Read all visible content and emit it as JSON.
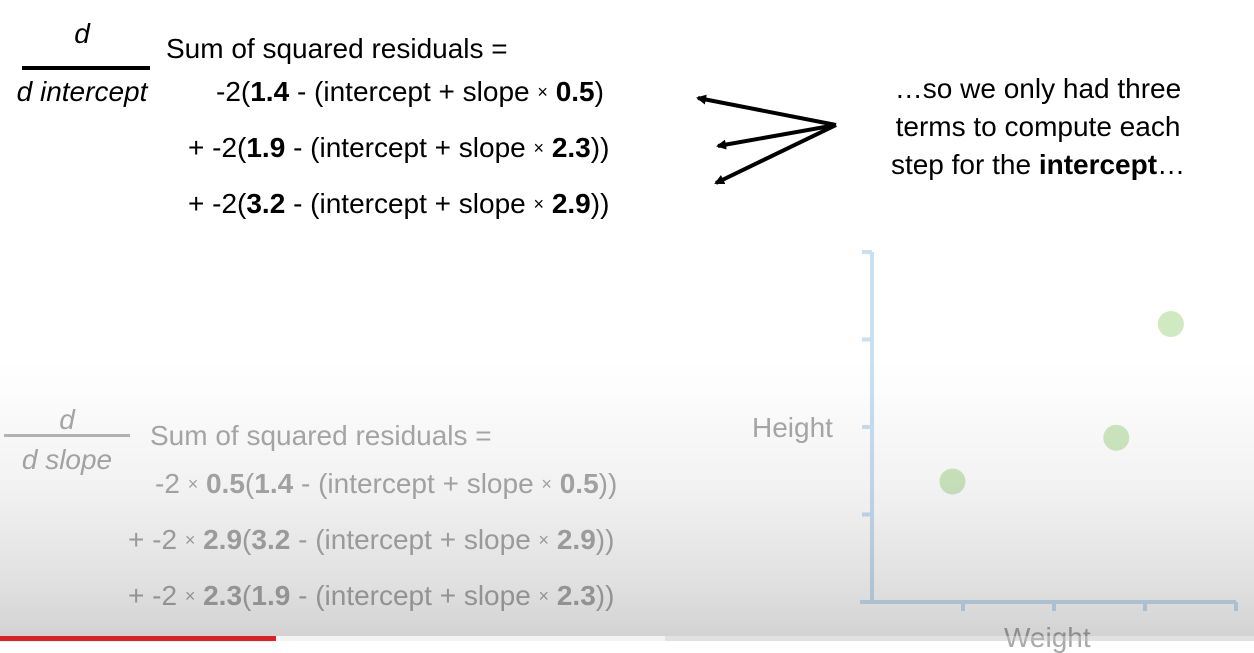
{
  "intercept_section": {
    "fraction_numerator": "d",
    "fraction_denominator": "d intercept",
    "equals_label": "Sum of squared residuals =",
    "terms": [
      {
        "prefix": "-2(",
        "obs": "1.4",
        "mid": " - (intercept + slope ",
        "x": "0.5",
        "suffix": ")"
      },
      {
        "prefix": "+ -2(",
        "obs": "1.9",
        "mid": " - (intercept + slope ",
        "x": "2.3",
        "suffix": "))"
      },
      {
        "prefix": "+ -2(",
        "obs": "3.2",
        "mid": " - (intercept + slope ",
        "x": "2.9",
        "suffix": "))"
      }
    ]
  },
  "note": {
    "line1": "…so we only had three",
    "line2": "terms to compute each",
    "line3_prefix": "step for the ",
    "line3_bold": "intercept",
    "line3_suffix": "…"
  },
  "slope_section": {
    "fraction_numerator": "d",
    "fraction_denominator": "d slope",
    "equals_label": "Sum of squared residuals =",
    "terms": [
      {
        "prefix": "-2 ",
        "coef": "0.5",
        "open": "(",
        "obs": "1.4",
        "mid": " - (intercept + slope ",
        "x": "0.5",
        "suffix": "))"
      },
      {
        "prefix": "+ -2 ",
        "coef": "2.9",
        "open": "(",
        "obs": "3.2",
        "mid": " - (intercept + slope ",
        "x": "2.9",
        "suffix": "))"
      },
      {
        "prefix": "+ -2 ",
        "coef": "2.3",
        "open": "(",
        "obs": "1.9",
        "mid": " - (intercept + slope ",
        "x": "2.3",
        "suffix": "))"
      }
    ]
  },
  "times_symbol": "×",
  "plot": {
    "ylabel": "Height",
    "xlabel": "Weight",
    "points": [
      {
        "x": 0.5,
        "y": 1.4
      },
      {
        "x": 2.3,
        "y": 1.9
      },
      {
        "x": 2.9,
        "y": 3.2
      }
    ],
    "x_ticks": 4,
    "y_ticks": 4,
    "axis_color": "#c9dff2",
    "point_color": "#cfe9c1"
  },
  "video": {
    "progress_played": 0.22,
    "progress_buffered": 0.53,
    "accent_color": "#e02020"
  }
}
